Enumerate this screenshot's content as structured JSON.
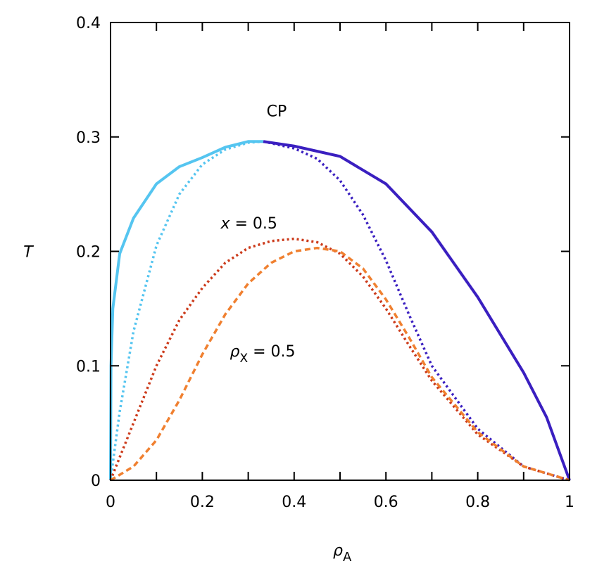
{
  "chart_data": {
    "type": "line",
    "xlabel": {
      "symbol": "ρ",
      "subscript": "A"
    },
    "ylabel": "T",
    "xlim": [
      0,
      1
    ],
    "xticks": [
      0,
      0.2,
      0.4,
      0.6,
      0.8,
      1
    ],
    "xminorticks": [
      0.1,
      0.3,
      0.5,
      0.7,
      0.9
    ],
    "ylim": [
      0,
      0.4
    ],
    "yticks": [
      0,
      0.1,
      0.2,
      0.3,
      0.4
    ],
    "series": [
      {
        "color": "#55c5f0",
        "style": "solid",
        "x": [
          0,
          0.001,
          0.005,
          0.02,
          0.05,
          0.1,
          0.15,
          0.2,
          0.25,
          0.3,
          0.333
        ],
        "values": [
          0,
          0.1,
          0.15,
          0.198,
          0.229,
          0.259,
          0.274,
          0.282,
          0.291,
          0.296,
          0.296
        ]
      },
      {
        "color": "#3a1fc0",
        "style": "solid",
        "x": [
          0.333,
          0.4,
          0.5,
          0.6,
          0.7,
          0.8,
          0.9,
          0.95,
          1
        ],
        "values": [
          0.296,
          0.292,
          0.283,
          0.259,
          0.217,
          0.16,
          0.094,
          0.055,
          0
        ]
      },
      {
        "color": "#55c5f0",
        "style": "dotted",
        "x": [
          0,
          0.02,
          0.05,
          0.1,
          0.15,
          0.2,
          0.25,
          0.3,
          0.333
        ],
        "values": [
          0,
          0.06,
          0.13,
          0.205,
          0.25,
          0.276,
          0.289,
          0.295,
          0.296
        ]
      },
      {
        "color": "#3a1fc0",
        "style": "dotted",
        "x": [
          0.333,
          0.4,
          0.45,
          0.5,
          0.55,
          0.6,
          0.65,
          0.7,
          0.8,
          0.9,
          1
        ],
        "values": [
          0.296,
          0.29,
          0.281,
          0.262,
          0.232,
          0.192,
          0.145,
          0.1,
          0.045,
          0.012,
          0
        ]
      },
      {
        "color": "#cc3a1a",
        "style": "dotted",
        "x": [
          0,
          0.05,
          0.1,
          0.15,
          0.2,
          0.25,
          0.3,
          0.35,
          0.4,
          0.45,
          0.5,
          0.55,
          0.6,
          0.65,
          0.7,
          0.8,
          0.9,
          1
        ],
        "values": [
          0,
          0.05,
          0.1,
          0.14,
          0.168,
          0.19,
          0.203,
          0.209,
          0.211,
          0.208,
          0.198,
          0.178,
          0.15,
          0.118,
          0.087,
          0.04,
          0.012,
          0
        ]
      },
      {
        "color": "#f08030",
        "style": "dashed",
        "x": [
          0,
          0.05,
          0.1,
          0.15,
          0.2,
          0.25,
          0.3,
          0.35,
          0.4,
          0.45,
          0.5,
          0.55,
          0.6,
          0.65,
          0.7,
          0.8,
          0.9,
          1
        ],
        "values": [
          0,
          0.012,
          0.035,
          0.07,
          0.11,
          0.145,
          0.172,
          0.19,
          0.2,
          0.203,
          0.2,
          0.185,
          0.158,
          0.125,
          0.09,
          0.042,
          0.012,
          0
        ]
      }
    ],
    "annotations": [
      {
        "text": "CP",
        "x": 0.34,
        "y": 0.318
      },
      {
        "italic": "x",
        "text": " = 0.5",
        "x": 0.24,
        "y": 0.22
      },
      {
        "symbol": "ρ",
        "subscript": "X",
        "text": " = 0.5",
        "x": 0.26,
        "y": 0.108
      }
    ]
  }
}
